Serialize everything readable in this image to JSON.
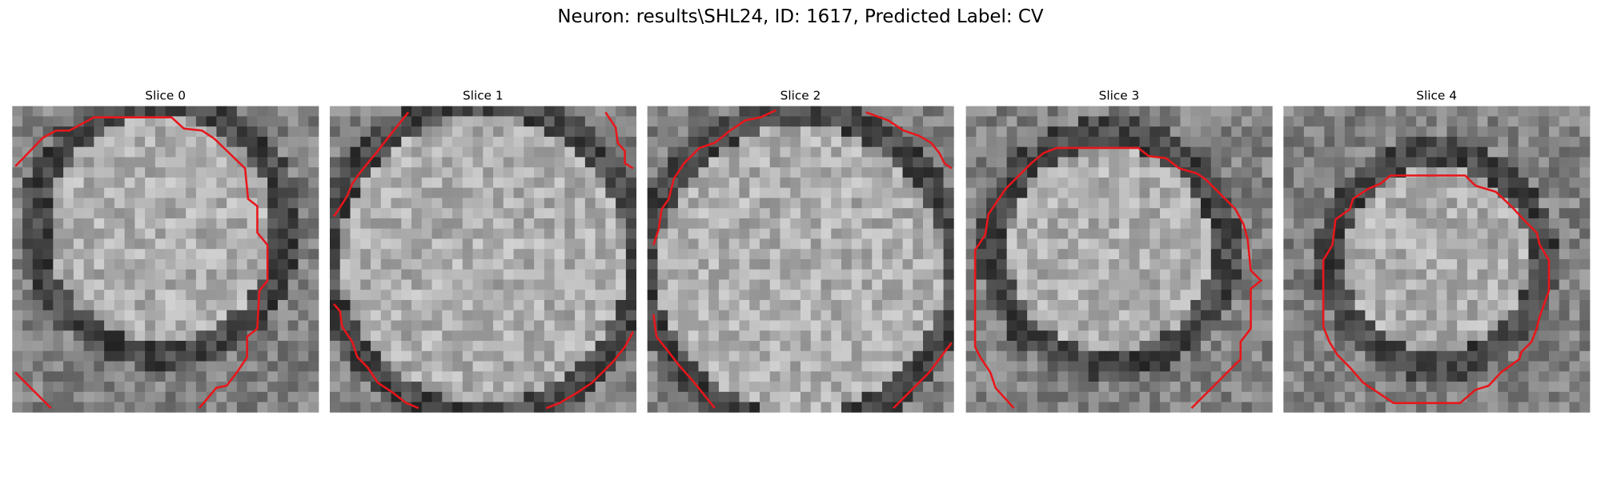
{
  "title": "Neuron: results\\SHL24, ID: 1617, Predicted Label: CV",
  "panels": [
    {
      "title": "Slice 0"
    },
    {
      "title": "Slice 1"
    },
    {
      "title": "Slice 2"
    },
    {
      "title": "Slice 3"
    },
    {
      "title": "Slice 4"
    }
  ]
}
